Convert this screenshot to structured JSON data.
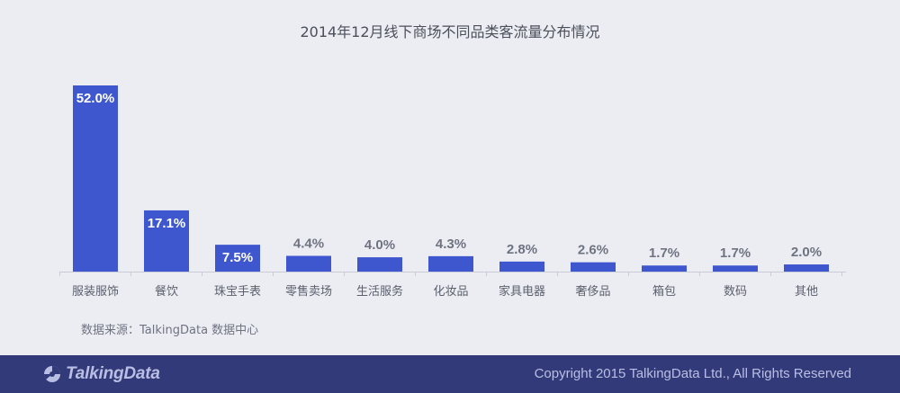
{
  "chart_data": {
    "type": "bar",
    "title": "2014年12月线下商场不同品类客流量分布情况",
    "categories": [
      "服装服饰",
      "餐饮",
      "珠宝手表",
      "零售卖场",
      "生活服务",
      "化妆品",
      "家具电器",
      "奢侈品",
      "箱包",
      "数码",
      "其他"
    ],
    "values": [
      52.0,
      17.1,
      7.5,
      4.4,
      4.0,
      4.3,
      2.8,
      2.6,
      1.7,
      1.7,
      2.0
    ],
    "value_labels": [
      "52.0%",
      "17.1%",
      "7.5%",
      "4.4%",
      "4.0%",
      "4.3%",
      "2.8%",
      "2.6%",
      "1.7%",
      "1.7%",
      "2.0%"
    ],
    "xlabel": "",
    "ylabel": "",
    "ylim": [
      0,
      52.0
    ],
    "grid": false,
    "bar_color": "#3E57CF"
  },
  "source": "数据来源：TalkingData 数据中心",
  "footer": {
    "logo_text": "TalkingData",
    "copyright": "Copyright 2015 TalkingData Ltd., All Rights Reserved",
    "background": "#333A7A"
  }
}
